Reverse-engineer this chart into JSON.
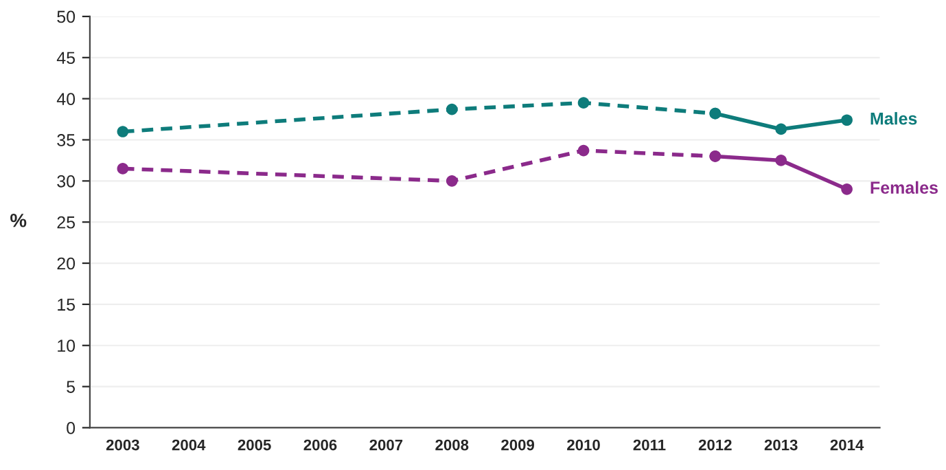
{
  "chart_data": {
    "type": "line",
    "ylabel": "%",
    "categories": [
      "2003",
      "2004",
      "2005",
      "2006",
      "2007",
      "2008",
      "2009",
      "2010",
      "2011",
      "2012",
      "2013",
      "2014"
    ],
    "ylim": [
      0,
      50
    ],
    "yticks": [
      0,
      5,
      10,
      15,
      20,
      25,
      30,
      35,
      40,
      45,
      50
    ],
    "grid": "y",
    "legend": false,
    "marker": "circle",
    "series": [
      {
        "color": "#0e7c7b",
        "line_style": "dashed",
        "values": [
          36.0,
          null,
          null,
          null,
          null,
          38.7,
          null,
          39.5,
          null,
          38.2,
          null,
          null
        ]
      },
      {
        "name": "Males",
        "color": "#0e7c7b",
        "line_style": "solid",
        "values": [
          null,
          null,
          null,
          null,
          null,
          null,
          null,
          null,
          null,
          38.2,
          36.3,
          37.4
        ]
      },
      {
        "color": "#8b2a8b",
        "line_style": "dashed",
        "values": [
          31.5,
          null,
          null,
          null,
          null,
          30.0,
          null,
          33.7,
          null,
          33.0,
          null,
          null
        ]
      },
      {
        "name": "Females",
        "color": "#8b2a8b",
        "line_style": "solid",
        "values": [
          null,
          null,
          null,
          null,
          null,
          null,
          null,
          null,
          null,
          33.0,
          32.5,
          29.0
        ]
      }
    ]
  }
}
